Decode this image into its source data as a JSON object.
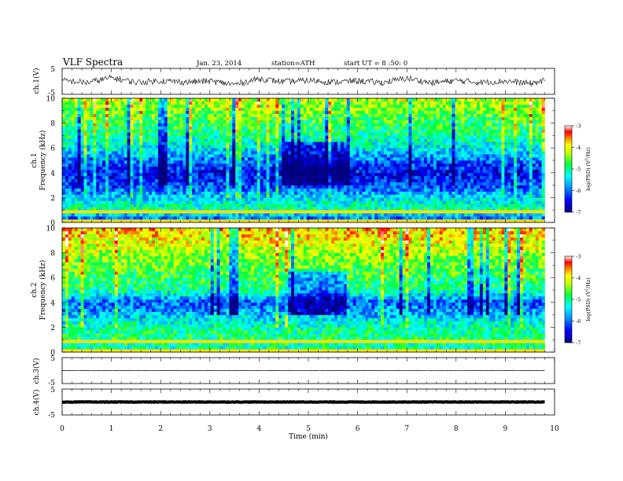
{
  "header": {
    "title": "VLF Spectra",
    "date": "Jan. 23, 2014",
    "station": "station=ATH",
    "start": "start UT = 8 :50: 0"
  },
  "chart_data": [
    {
      "type": "line",
      "name": "ch1-waveform",
      "ylabel": "ch.1(V)",
      "ylim": [
        -5,
        5
      ],
      "y_tick_labels": [
        "5",
        "-5"
      ],
      "x": [
        0,
        0.5,
        1,
        1.5,
        2,
        2.5,
        3,
        3.5,
        4,
        4.5,
        5,
        5.5,
        6,
        6.5,
        7,
        7.5,
        8,
        8.5,
        9,
        9.5,
        9.8
      ],
      "values": [
        0.3,
        -0.5,
        1.4,
        -0.4,
        0.2,
        -0.3,
        0.1,
        -1.2,
        1.0,
        -0.2,
        0.4,
        -0.3,
        0.2,
        -0.5,
        1.2,
        -0.6,
        0.3,
        -0.4,
        0.1,
        -0.8,
        0.2
      ]
    },
    {
      "type": "heatmap",
      "name": "ch1-spectrogram",
      "ylabel": "ch.1\nFrequency (kHz)",
      "ylim": [
        0,
        10
      ],
      "y_tick_labels": [
        "0",
        "2",
        "4",
        "6",
        "8",
        "10"
      ],
      "colorbar": {
        "label": "log(PSD) (V²/Hz)",
        "range": [
          -7,
          -3
        ],
        "tick_labels": [
          "-3",
          "-4",
          "-5",
          "-6",
          "-7"
        ]
      },
      "noise_floor_log_psd": [
        -6.4,
        -5.0,
        -5.5,
        -6.2,
        -6.5,
        -6.0,
        -5.4,
        -5.0,
        -4.8,
        -4.5,
        -4.2
      ],
      "low_activity_interval_min": [
        4.5,
        5.8
      ]
    },
    {
      "type": "heatmap",
      "name": "ch2-spectrogram",
      "ylabel": "ch.2\nFrequency (kHz)",
      "ylim": [
        0,
        10
      ],
      "y_tick_labels": [
        "0",
        "2",
        "4",
        "6",
        "8",
        "10"
      ],
      "colorbar": {
        "label": "log(PSD) (V²/Hz)",
        "range": [
          -7,
          -3
        ],
        "tick_labels": [
          "-3",
          "-4",
          "-5",
          "-6",
          "-7"
        ]
      },
      "noise_floor_log_psd": [
        -5.2,
        -4.9,
        -5.1,
        -5.6,
        -6.1,
        -5.0,
        -4.8,
        -4.6,
        -4.3,
        -4.0,
        -3.8
      ],
      "low_activity_interval_min": [
        4.5,
        5.8
      ]
    },
    {
      "type": "line",
      "name": "ch3-waveform",
      "ylabel": "ch.3(V)",
      "ylim": [
        -5,
        5
      ],
      "y_tick_labels": [
        "5",
        "-5"
      ],
      "x": [
        0,
        9.8
      ],
      "values": [
        0,
        0
      ]
    },
    {
      "type": "line",
      "name": "ch4-waveform",
      "ylabel": "ch.4(V)",
      "ylim": [
        -5,
        5
      ],
      "y_tick_labels": [
        "5",
        "-5"
      ],
      "x": [
        0,
        9.8
      ],
      "values": [
        0,
        0
      ]
    }
  ],
  "x_axis": {
    "label": "Time (min)",
    "range": [
      0,
      10
    ],
    "data_end": 9.8,
    "tick_labels": [
      "0",
      "1",
      "2",
      "3",
      "4",
      "5",
      "6",
      "7",
      "8",
      "9",
      "10"
    ]
  }
}
